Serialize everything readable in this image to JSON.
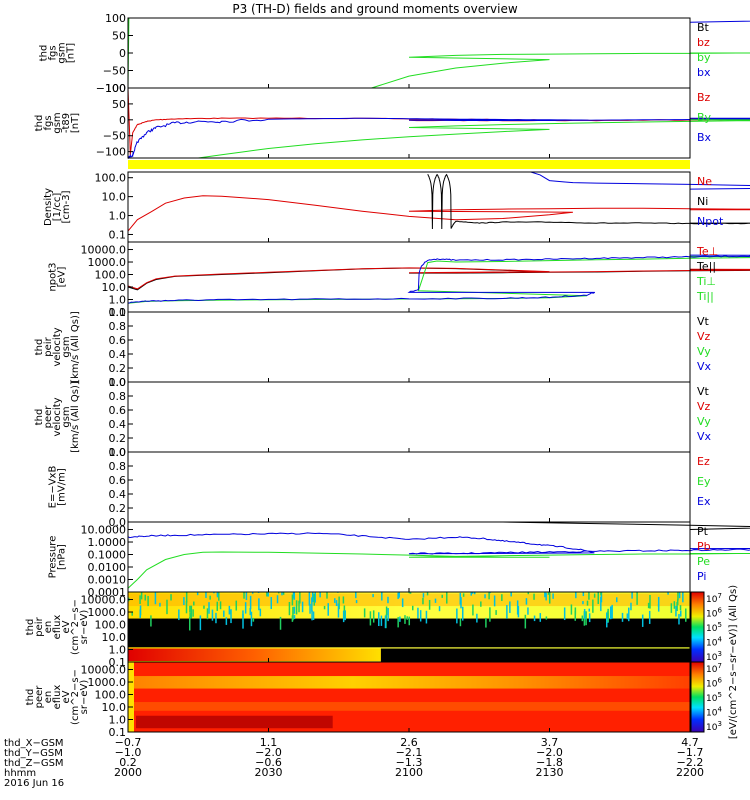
{
  "title": "P3 (TH-D) fields and ground moments overview",
  "date_label": "2016 Jun 16",
  "colors": {
    "red": "#dd0000",
    "green": "#22dd22",
    "blue": "#0000dd",
    "black": "#000000",
    "yellow": "#ffff00"
  },
  "chart_data": [
    {
      "type": "line",
      "id": "fgs",
      "ylabel": [
        "thd",
        "fgs",
        "gsm",
        "[nT]"
      ],
      "yticks": [
        "100",
        "50",
        "0",
        "−50",
        "−100"
      ],
      "ylim": [
        -100,
        100
      ],
      "log": false,
      "legend": [
        {
          "text": "Bt",
          "color": "black"
        },
        {
          "text": "bz",
          "color": "red"
        },
        {
          "text": "by",
          "color": "green"
        },
        {
          "text": "bx",
          "color": "blue"
        }
      ],
      "series": [
        {
          "color": "blue",
          "x": [
            2176,
            2180,
            2190,
            2200
          ],
          "y": [
            100,
            99,
            95,
            88
          ]
        },
        {
          "color": "green",
          "x": [
            2000,
            2000.2
          ],
          "y": [
            -100,
            100
          ]
        },
        {
          "color": "green",
          "x": [
            2052,
            2060,
            2070,
            2080,
            2090,
            2100,
            2110,
            2120,
            2130,
            2140,
            2150,
            2160,
            2170,
            2180,
            2190,
            2200
          ],
          "y": [
            -100,
            -66,
            -43,
            -29,
            -19,
            -12,
            -7,
            -4,
            -3,
            -2,
            -1,
            -1,
            0,
            0,
            0,
            0
          ]
        }
      ]
    },
    {
      "type": "line",
      "id": "fgs_minus_t89",
      "ylabel": [
        "thd",
        "fgs",
        "gsm",
        "-t89",
        "[nT]"
      ],
      "yticks": [
        "100",
        "50",
        "0",
        "−50",
        "−100"
      ],
      "ylim": [
        -120,
        100
      ],
      "log": false,
      "legend": [
        {
          "text": "Bz",
          "color": "red"
        },
        {
          "text": "By",
          "color": "green"
        },
        {
          "text": "Bx",
          "color": "blue"
        }
      ],
      "series": [
        {
          "color": "red",
          "x": [
            2000,
            2000.5,
            2001,
            2002,
            2004,
            2006,
            2010,
            2020,
            2040,
            2060,
            2080,
            2100,
            2120,
            2140,
            2160,
            2180,
            2200
          ],
          "y": [
            100,
            -110,
            -40,
            -15,
            -5,
            0,
            3,
            5,
            5,
            3,
            0,
            -2,
            -2,
            -2,
            0,
            2,
            3
          ],
          "noise": 2
        },
        {
          "color": "blue",
          "x": [
            2000,
            2001,
            2002,
            2004,
            2006,
            2010,
            2015,
            2020,
            2030,
            2050,
            2070,
            2090,
            2110,
            2130,
            2150,
            2170,
            2190,
            2200
          ],
          "y": [
            -120,
            -110,
            -70,
            -40,
            -25,
            -10,
            -5,
            -5,
            2,
            5,
            2,
            0,
            -2,
            -2,
            0,
            2,
            3,
            5
          ],
          "noise": 8,
          "noise_until": 2030
        },
        {
          "color": "green",
          "x": [
            2015,
            2020,
            2025,
            2030,
            2040,
            2050,
            2060,
            2070,
            2080,
            2090,
            2100,
            2110,
            2120,
            2130,
            2140,
            2150,
            2160,
            2170,
            2180,
            2190,
            2200
          ],
          "y": [
            -120,
            -110,
            -100,
            -90,
            -75,
            -63,
            -53,
            -45,
            -37,
            -30,
            -24,
            -19,
            -15,
            -12,
            -9,
            -7,
            -5,
            -3,
            -2,
            -1,
            0
          ]
        }
      ]
    },
    {
      "type": "line",
      "id": "density",
      "ylabel": [
        "Density",
        "[1/cc]",
        "[cm-3]"
      ],
      "yticks": [
        "100.0",
        "10.0",
        "1.0",
        "0.1"
      ],
      "ylim": [
        0.04,
        200
      ],
      "log": true,
      "legend": [
        {
          "text": "Ne",
          "color": "red"
        },
        {
          "text": "Ni",
          "color": "black"
        },
        {
          "text": "Npot",
          "color": "blue"
        }
      ],
      "series": [
        {
          "color": "red",
          "x": [
            2000,
            2002,
            2005,
            2008,
            2012,
            2016,
            2020,
            2030,
            2040,
            2050,
            2060,
            2070,
            2080,
            2090,
            2095,
            2100,
            2110,
            2120,
            2130,
            2140,
            2150,
            2160,
            2170,
            2180,
            2190,
            2200
          ],
          "y": [
            0.15,
            0.6,
            1.6,
            4.5,
            8.5,
            11,
            10.5,
            7,
            3.5,
            1.7,
            0.9,
            0.6,
            0.7,
            1.1,
            1.5,
            1.7,
            2.0,
            2.2,
            2.3,
            2.4,
            2.4,
            2.3,
            2.2,
            2.1,
            2.0,
            2.0
          ]
        },
        {
          "color": "black",
          "x": [
            2104,
            2105,
            2106,
            2107,
            2108,
            2109,
            2110,
            2115,
            2120,
            2130,
            2140,
            2150,
            2160,
            2170,
            2180,
            2190,
            2200
          ],
          "y": [
            150,
            0.2,
            150,
            0.2,
            150,
            0.2,
            0.5,
            0.4,
            0.45,
            0.45,
            0.4,
            0.4,
            0.38,
            0.38,
            0.4,
            0.38,
            0.4
          ],
          "noise": 0.08
        },
        {
          "color": "blue",
          "x": [
            2126,
            2128,
            2130,
            2133,
            2135,
            2140,
            2150,
            2160,
            2170,
            2180,
            2190,
            2200
          ],
          "y": [
            200,
            140,
            70,
            60,
            55,
            52,
            48,
            44,
            40,
            36,
            30,
            25
          ]
        }
      ]
    },
    {
      "type": "line",
      "id": "temperature",
      "ylabel": [
        "npot3",
        "[eV]"
      ],
      "yticks": [
        "10000.0",
        "1000.0",
        "100.0",
        "10.0",
        "1.0",
        "0.1"
      ],
      "ylim": [
        0.1,
        40000
      ],
      "log": true,
      "legend": [
        {
          "text": "Te⊥",
          "color": "red"
        },
        {
          "text": "Te||",
          "color": "black"
        },
        {
          "text": "Ti⊥",
          "color": "green"
        },
        {
          "text": "Ti||",
          "color": "green"
        }
      ],
      "series": [
        {
          "color": "black",
          "x": [
            2000,
            2002,
            2004,
            2006,
            2010,
            2020,
            2030,
            2040,
            2050,
            2060,
            2070,
            2080,
            2090,
            2100,
            2105,
            2110,
            2120,
            2130,
            2140,
            2150,
            2160,
            2170,
            2180,
            2190,
            2200
          ],
          "y": [
            10,
            6,
            20,
            40,
            70,
            100,
            140,
            200,
            280,
            330,
            300,
            220,
            160,
            130,
            130,
            130,
            140,
            150,
            160,
            180,
            200,
            210,
            230,
            240,
            250
          ]
        },
        {
          "color": "red",
          "x": [
            2000,
            2002,
            2004,
            2006,
            2010,
            2020,
            2030,
            2040,
            2050,
            2060,
            2070,
            2080,
            2090,
            2100,
            2105,
            2110,
            2120,
            2130,
            2140,
            2150,
            2160,
            2170,
            2180,
            2190,
            2200
          ],
          "y": [
            12,
            7,
            22,
            45,
            75,
            110,
            150,
            210,
            290,
            340,
            310,
            230,
            170,
            140,
            140,
            140,
            150,
            160,
            170,
            190,
            210,
            220,
            240,
            250,
            260
          ]
        },
        {
          "color": "green",
          "x": [
            2000,
            2004,
            2010,
            2020,
            2040,
            2060,
            2080,
            2090,
            2098,
            2102,
            2104,
            2106,
            2110,
            2120,
            2130,
            2140,
            2150,
            2160,
            2170,
            2180,
            2190,
            2200
          ],
          "y": [
            0.5,
            0.7,
            0.8,
            0.9,
            1.0,
            1.1,
            1.2,
            1.4,
            2,
            5,
            900,
            1200,
            1000,
            1100,
            1300,
            1500,
            1700,
            2000,
            2200,
            2400,
            2600,
            2800
          ]
        },
        {
          "color": "blue",
          "x": [
            2000,
            2004,
            2010,
            2020,
            2040,
            2060,
            2080,
            2090,
            2098,
            2102,
            2104,
            2106,
            2110,
            2120,
            2130,
            2140,
            2150,
            2160,
            2170,
            2180,
            2190,
            2200
          ],
          "y": [
            0.55,
            0.75,
            0.85,
            0.95,
            1.05,
            1.15,
            1.25,
            1.5,
            2.2,
            6,
            1300,
            1800,
            1400,
            1500,
            1700,
            2000,
            2300,
            2600,
            2900,
            3100,
            3300,
            3600
          ],
          "noise": 0.15
        }
      ]
    },
    {
      "type": "line",
      "id": "peir_velocity",
      "ylabel": [
        "thd",
        "peir",
        "velocity",
        "gsm",
        "[km/s (All Qs)]"
      ],
      "yticks": [
        "1.0",
        "0.8",
        "0.6",
        "0.4",
        "0.2",
        "0.0"
      ],
      "ylim": [
        0,
        1
      ],
      "log": false,
      "legend": [
        {
          "text": "Vt",
          "color": "black"
        },
        {
          "text": "Vz",
          "color": "red"
        },
        {
          "text": "Vy",
          "color": "green"
        },
        {
          "text": "Vx",
          "color": "blue"
        }
      ],
      "series": []
    },
    {
      "type": "line",
      "id": "peer_velocity",
      "ylabel": [
        "thd",
        "peer",
        "velocity",
        "gsm",
        "[km/s (All Qs)]"
      ],
      "yticks": [
        "1.0",
        "0.8",
        "0.6",
        "0.4",
        "0.2",
        "0.0"
      ],
      "ylim": [
        0,
        1
      ],
      "log": false,
      "legend": [
        {
          "text": "Vt",
          "color": "black"
        },
        {
          "text": "Vz",
          "color": "red"
        },
        {
          "text": "Vy",
          "color": "green"
        },
        {
          "text": "Vx",
          "color": "blue"
        }
      ],
      "series": []
    },
    {
      "type": "line",
      "id": "e_field",
      "ylabel": [
        "E=−VxB",
        "[mV/m]"
      ],
      "yticks": [
        "1.0",
        "0.8",
        "0.6",
        "0.4",
        "0.2",
        "0.0"
      ],
      "ylim": [
        0,
        1
      ],
      "log": false,
      "legend": [
        {
          "text": "Ez",
          "color": "red"
        },
        {
          "text": "Ey",
          "color": "green"
        },
        {
          "text": "Ex",
          "color": "blue"
        }
      ],
      "series": []
    },
    {
      "type": "line",
      "id": "pressure",
      "ylabel": [
        "Pressure",
        "[nPa]"
      ],
      "yticks": [
        "10.0000",
        "1.0000",
        "0.1000",
        "0.0100",
        "0.0010",
        "0.0001"
      ],
      "ylim": [
        0.0001,
        40
      ],
      "log": true,
      "legend": [
        {
          "text": "Pt",
          "color": "black"
        },
        {
          "text": "Pb",
          "color": "red"
        },
        {
          "text": "Pe",
          "color": "green"
        },
        {
          "text": "Pi",
          "color": "blue"
        }
      ],
      "series": [
        {
          "color": "black",
          "x": [
            2120,
            2140,
            2160,
            2180,
            2200
          ],
          "y": [
            40,
            30,
            22,
            15,
            10
          ]
        },
        {
          "color": "green",
          "x": [
            2000,
            2002,
            2004,
            2008,
            2012,
            2016,
            2020,
            2030,
            2040,
            2050,
            2060,
            2070,
            2080,
            2090,
            2100,
            2110,
            2120,
            2130,
            2140,
            2150,
            2160,
            2170,
            2180,
            2190,
            2200
          ],
          "y": [
            0.0002,
            0.001,
            0.006,
            0.04,
            0.1,
            0.15,
            0.16,
            0.15,
            0.13,
            0.11,
            0.09,
            0.07,
            0.06,
            0.06,
            0.06,
            0.07,
            0.08,
            0.09,
            0.1,
            0.11,
            0.11,
            0.12,
            0.12,
            0.12,
            0.12
          ]
        },
        {
          "color": "blue",
          "x": [
            2000,
            2004,
            2010,
            2020,
            2030,
            2040,
            2050,
            2060,
            2070,
            2075,
            2080,
            2085,
            2090,
            2095,
            2100,
            2110,
            2120,
            2130,
            2140,
            2150,
            2160,
            2170,
            2180,
            2190,
            2200
          ],
          "y": [
            2.5,
            3,
            3.5,
            4,
            4.5,
            5,
            3,
            1.5,
            2.5,
            2,
            1.2,
            0.8,
            0.5,
            0.3,
            0.12,
            0.12,
            0.14,
            0.16,
            0.18,
            0.2,
            0.22,
            0.24,
            0.26,
            0.28,
            0.3
          ],
          "noise": 0.18
        }
      ]
    },
    {
      "type": "heatmap",
      "id": "peir_en_eflux",
      "ylabel": [
        "thd",
        "peir",
        "en",
        "eflux",
        "eV",
        "(cm^2−s−",
        "sr−eV)"
      ],
      "yticks": [
        "10000.0",
        "1000.0",
        "100.0",
        "10.0",
        "1.0",
        "0.1"
      ],
      "ylim": [
        0.1,
        40000
      ],
      "log": true
    },
    {
      "type": "heatmap",
      "id": "peer_en_eflux",
      "ylabel": [
        "thd",
        "peer",
        "en",
        "eflux",
        "eV",
        "(cm^2−s−",
        "sr−eV)"
      ],
      "yticks": [
        "10000.0",
        "1000.0",
        "100.0",
        "10.0",
        "1.0",
        "0.1"
      ],
      "ylim": [
        0.1,
        40000
      ],
      "log": true
    }
  ],
  "colorbar_ticks": [
    "10^7",
    "10^6",
    "10^5",
    "10^4",
    "10^3"
  ],
  "colorbar_label": "[eV/(cm^2−s−sr−eV)] (All Qs)",
  "x_axis": {
    "hhmm_range": [
      2000,
      2200
    ],
    "tick_positions_hhmm": [
      2000,
      2030,
      2100,
      2130,
      2200
    ],
    "rows": [
      {
        "label": "thd_X−GSM",
        "values": [
          "−0.7",
          "1.1",
          "2.6",
          "3.7",
          "4.7"
        ]
      },
      {
        "label": "thd_Y−GSM",
        "values": [
          "−1.0",
          "−2.0",
          "−2.1",
          "−2.0",
          "−1.7"
        ]
      },
      {
        "label": "thd_Z−GSM",
        "values": [
          "0.2",
          "−0.6",
          "−1.3",
          "−1.8",
          "−2.2"
        ]
      },
      {
        "label": "hhmm",
        "values": [
          "2000",
          "2030",
          "2100",
          "2130",
          "2200"
        ]
      }
    ]
  }
}
